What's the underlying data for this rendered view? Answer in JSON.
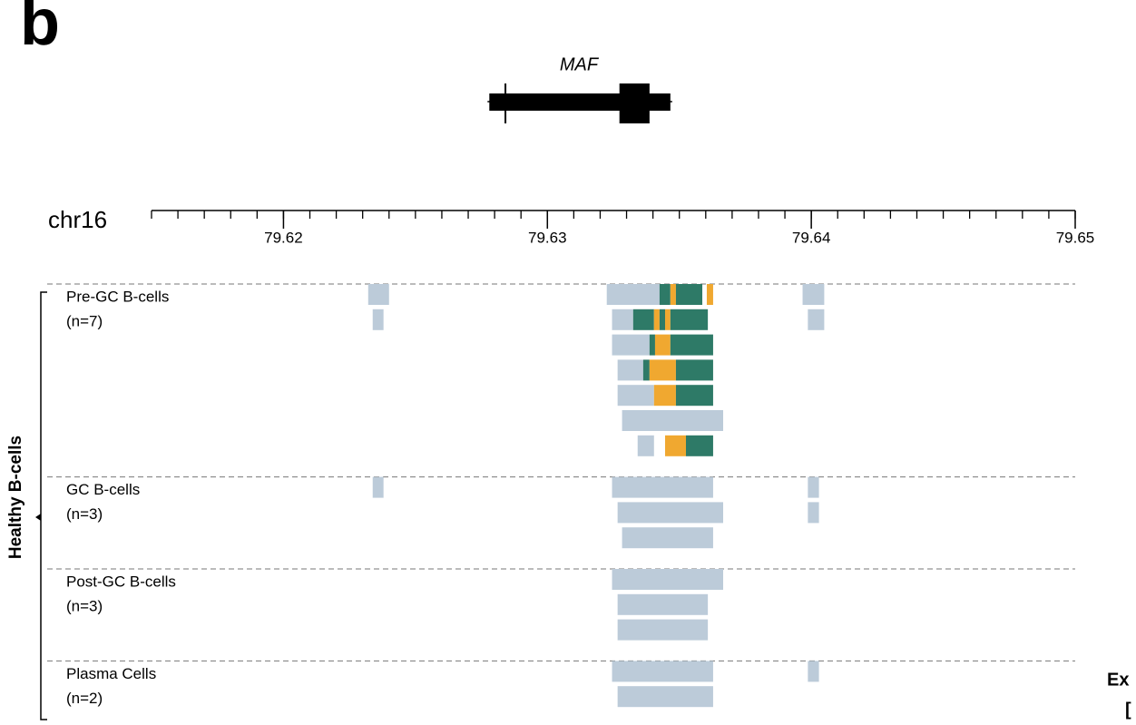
{
  "panel_label": "b",
  "gene": {
    "name": "MAF",
    "start": 79.6278,
    "end": 79.63466,
    "thick_start": 79.63273,
    "thick_end": 79.63387,
    "tss": 79.62841
  },
  "axis": {
    "chromosome": "chr16",
    "xlim": [
      79.615,
      79.65
    ],
    "xticks": [
      79.62,
      79.63,
      79.64,
      79.65
    ],
    "minor_ticks": [
      79.615,
      79.616,
      79.617,
      79.618,
      79.619,
      79.62,
      79.621,
      79.622,
      79.623,
      79.624,
      79.625,
      79.626,
      79.627,
      79.628,
      79.629,
      79.63,
      79.631,
      79.632,
      79.633,
      79.634,
      79.635,
      79.636,
      79.637,
      79.638,
      79.639,
      79.64,
      79.641,
      79.642,
      79.643,
      79.644,
      79.645,
      79.646,
      79.647,
      79.648,
      79.649,
      79.65
    ]
  },
  "bracket_label": "Healthy B-cells",
  "groups": [
    {
      "name": "Pre-GC B-cells",
      "n": "(n=7)",
      "rows": [
        [
          {
            "s": 79.62321,
            "e": 79.624,
            "color": "#bccbd9"
          },
          {
            "s": 79.63225,
            "e": 79.63425,
            "color": "#bccbd9"
          },
          {
            "s": 79.63425,
            "e": 79.63466,
            "color": "#2e7a67"
          },
          {
            "s": 79.63466,
            "e": 79.63487,
            "color": "#f0a830"
          },
          {
            "s": 79.63487,
            "e": 79.63587,
            "color": "#2e7a67"
          },
          {
            "s": 79.63604,
            "e": 79.63628,
            "color": "#f0a830"
          },
          {
            "s": 79.63967,
            "e": 79.64049,
            "color": "#bccbd9"
          }
        ],
        [
          {
            "s": 79.62338,
            "e": 79.62379,
            "color": "#bccbd9"
          },
          {
            "s": 79.63245,
            "e": 79.63325,
            "color": "#bccbd9"
          },
          {
            "s": 79.63325,
            "e": 79.63404,
            "color": "#2e7a67"
          },
          {
            "s": 79.63404,
            "e": 79.63425,
            "color": "#f0a830"
          },
          {
            "s": 79.63425,
            "e": 79.63446,
            "color": "#2e7a67"
          },
          {
            "s": 79.63446,
            "e": 79.63466,
            "color": "#f0a830"
          },
          {
            "s": 79.63466,
            "e": 79.63608,
            "color": "#2e7a67"
          },
          {
            "s": 79.63987,
            "e": 79.64049,
            "color": "#bccbd9"
          }
        ],
        [
          {
            "s": 79.63245,
            "e": 79.63387,
            "color": "#bccbd9"
          },
          {
            "s": 79.63387,
            "e": 79.63408,
            "color": "#2e7a67"
          },
          {
            "s": 79.63408,
            "e": 79.63466,
            "color": "#f0a830"
          },
          {
            "s": 79.63466,
            "e": 79.63628,
            "color": "#2e7a67"
          }
        ],
        [
          {
            "s": 79.63266,
            "e": 79.63363,
            "color": "#bccbd9"
          },
          {
            "s": 79.63363,
            "e": 79.63387,
            "color": "#2e7a67"
          },
          {
            "s": 79.63387,
            "e": 79.63487,
            "color": "#f0a830"
          },
          {
            "s": 79.63487,
            "e": 79.63628,
            "color": "#2e7a67"
          }
        ],
        [
          {
            "s": 79.63266,
            "e": 79.63404,
            "color": "#bccbd9"
          },
          {
            "s": 79.63404,
            "e": 79.63487,
            "color": "#f0a830"
          },
          {
            "s": 79.63487,
            "e": 79.63628,
            "color": "#2e7a67"
          }
        ],
        [
          {
            "s": 79.63283,
            "e": 79.63666,
            "color": "#bccbd9"
          }
        ],
        [
          {
            "s": 79.63342,
            "e": 79.63404,
            "color": "#bccbd9"
          },
          {
            "s": 79.63446,
            "e": 79.63525,
            "color": "#f0a830"
          },
          {
            "s": 79.63525,
            "e": 79.63628,
            "color": "#2e7a67"
          }
        ]
      ]
    },
    {
      "name": "GC B-cells",
      "n": "(n=3)",
      "rows": [
        [
          {
            "s": 79.62338,
            "e": 79.62379,
            "color": "#bccbd9"
          },
          {
            "s": 79.63245,
            "e": 79.63628,
            "color": "#bccbd9"
          },
          {
            "s": 79.63987,
            "e": 79.64029,
            "color": "#bccbd9"
          }
        ],
        [
          {
            "s": 79.63266,
            "e": 79.63666,
            "color": "#bccbd9"
          },
          {
            "s": 79.63987,
            "e": 79.64029,
            "color": "#bccbd9"
          }
        ],
        [
          {
            "s": 79.63283,
            "e": 79.63628,
            "color": "#bccbd9"
          }
        ]
      ]
    },
    {
      "name": "Post-GC B-cells",
      "n": "(n=3)",
      "rows": [
        [
          {
            "s": 79.63245,
            "e": 79.63666,
            "color": "#bccbd9"
          }
        ],
        [
          {
            "s": 79.63266,
            "e": 79.63608,
            "color": "#bccbd9"
          }
        ],
        [
          {
            "s": 79.63266,
            "e": 79.63608,
            "color": "#bccbd9"
          }
        ]
      ]
    },
    {
      "name": "Plasma Cells",
      "n": "(n=2)",
      "rows": [
        [
          {
            "s": 79.63245,
            "e": 79.63628,
            "color": "#bccbd9"
          },
          {
            "s": 79.63987,
            "e": 79.64029,
            "color": "#bccbd9"
          }
        ],
        [
          {
            "s": 79.63266,
            "e": 79.63628,
            "color": "#bccbd9"
          }
        ]
      ]
    }
  ],
  "cut_texts": [
    "Ex",
    "["
  ]
}
